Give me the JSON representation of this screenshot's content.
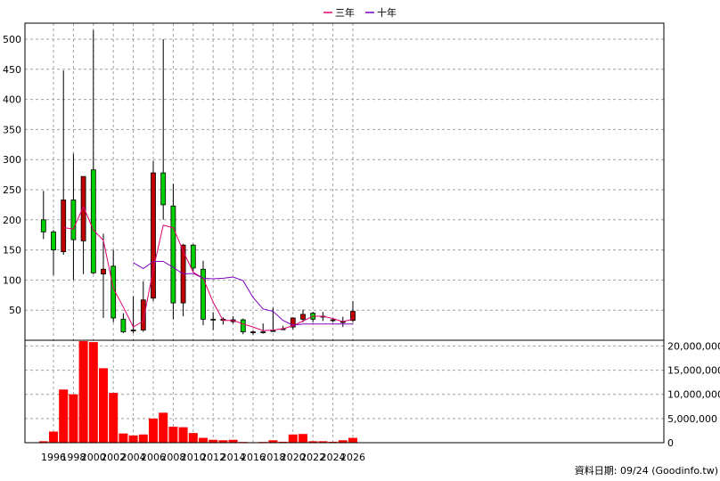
{
  "chart_data": {
    "type": "candlestick",
    "legend": {
      "placement": "top-center",
      "items": [
        {
          "label": "三年",
          "color": "#e0006e"
        },
        {
          "label": "十年",
          "color": "#8000c0"
        }
      ]
    },
    "x_ticks": [
      "1996",
      "1998",
      "2000",
      "2002",
      "2004",
      "2006",
      "2008",
      "2010",
      "2012",
      "2014",
      "2016",
      "2018",
      "2020",
      "2022",
      "2024",
      "2026"
    ],
    "price_axis": {
      "ticks": [
        50,
        100,
        150,
        200,
        250,
        300,
        350,
        400,
        450,
        500
      ],
      "ylim": [
        0,
        520
      ]
    },
    "volume_axis": {
      "ticks": [
        "20,000,000",
        "15,000,000",
        "10,000,000",
        "5,000,000",
        "0"
      ],
      "tick_values": [
        20000000,
        15000000,
        10000000,
        5000000,
        0
      ],
      "ylim": [
        0,
        21000000
      ]
    },
    "grid": true,
    "up_color": "#00d000",
    "down_color": "#c00000",
    "candles": [
      {
        "year": 1995,
        "open": 180,
        "close": 200,
        "high": 248,
        "low": 168
      },
      {
        "year": 1996,
        "open": 150,
        "close": 180,
        "high": 183,
        "low": 108
      },
      {
        "year": 1997,
        "open": 233,
        "close": 147,
        "high": 448,
        "low": 142
      },
      {
        "year": 1998,
        "open": 167,
        "close": 233,
        "high": 310,
        "low": 100
      },
      {
        "year": 1999,
        "open": 272,
        "close": 165,
        "high": 272,
        "low": 110
      },
      {
        "year": 2000,
        "open": 112,
        "close": 283,
        "high": 515,
        "low": 110
      },
      {
        "year": 2001,
        "open": 118,
        "close": 110,
        "high": 177,
        "low": 37
      },
      {
        "year": 2002,
        "open": 37,
        "close": 123,
        "high": 150,
        "low": 30
      },
      {
        "year": 2003,
        "open": 14,
        "close": 35,
        "high": 45,
        "low": 12
      },
      {
        "year": 2004,
        "open": 17,
        "close": 16,
        "high": 73,
        "low": 12
      },
      {
        "year": 2005,
        "open": 67,
        "close": 17,
        "high": 98,
        "low": 14
      },
      {
        "year": 2006,
        "open": 278,
        "close": 70,
        "high": 298,
        "low": 65
      },
      {
        "year": 2007,
        "open": 225,
        "close": 278,
        "high": 500,
        "low": 200
      },
      {
        "year": 2008,
        "open": 62,
        "close": 223,
        "high": 260,
        "low": 35
      },
      {
        "year": 2009,
        "open": 158,
        "close": 62,
        "high": 160,
        "low": 40
      },
      {
        "year": 2010,
        "open": 120,
        "close": 158,
        "high": 160,
        "low": 115
      },
      {
        "year": 2011,
        "open": 35,
        "close": 118,
        "high": 132,
        "low": 25
      },
      {
        "year": 2012,
        "open": 35,
        "close": 35,
        "high": 46,
        "low": 17
      },
      {
        "year": 2013,
        "open": 35,
        "close": 33,
        "high": 38,
        "low": 26
      },
      {
        "year": 2014,
        "open": 34,
        "close": 31,
        "high": 40,
        "low": 28
      },
      {
        "year": 2015,
        "open": 14,
        "close": 34,
        "high": 36,
        "low": 10
      },
      {
        "year": 2016,
        "open": 14,
        "close": 13,
        "high": 16,
        "low": 9
      },
      {
        "year": 2017,
        "open": 13,
        "close": 14,
        "high": 28,
        "low": 11
      },
      {
        "year": 2018,
        "open": 16,
        "close": 16,
        "high": 54,
        "low": 14
      },
      {
        "year": 2019,
        "open": 19,
        "close": 19,
        "high": 24,
        "low": 17
      },
      {
        "year": 2020,
        "open": 37,
        "close": 22,
        "high": 38,
        "low": 18
      },
      {
        "year": 2021,
        "open": 43,
        "close": 35,
        "high": 51,
        "low": 30
      },
      {
        "year": 2022,
        "open": 35,
        "close": 45,
        "high": 47,
        "low": 30
      },
      {
        "year": 2023,
        "open": 40,
        "close": 39,
        "high": 47,
        "low": 32
      },
      {
        "year": 2024,
        "open": 34,
        "close": 33,
        "high": 36,
        "low": 30
      },
      {
        "year": 2025,
        "open": 31,
        "close": 30,
        "high": 39,
        "low": 22
      },
      {
        "year": 2026,
        "open": 48,
        "close": 33,
        "high": 65,
        "low": 30
      }
    ],
    "series": [
      {
        "name": "三年",
        "color": "#e0006e",
        "points": [
          [
            1997,
            187
          ],
          [
            1998,
            185
          ],
          [
            1999,
            222
          ],
          [
            2000,
            183
          ],
          [
            2001,
            166
          ],
          [
            2002,
            86
          ],
          [
            2003,
            55
          ],
          [
            2004,
            22
          ],
          [
            2005,
            32
          ],
          [
            2006,
            118
          ],
          [
            2007,
            191
          ],
          [
            2008,
            187
          ],
          [
            2009,
            148
          ],
          [
            2010,
            113
          ],
          [
            2011,
            103
          ],
          [
            2012,
            63
          ],
          [
            2013,
            33
          ],
          [
            2014,
            33
          ],
          [
            2015,
            27
          ],
          [
            2016,
            22
          ],
          [
            2017,
            16
          ],
          [
            2018,
            17
          ],
          [
            2019,
            19
          ],
          [
            2020,
            24
          ],
          [
            2021,
            32
          ],
          [
            2022,
            40
          ],
          [
            2023,
            40
          ],
          [
            2024,
            36
          ],
          [
            2025,
            31
          ],
          [
            2026,
            35
          ]
        ]
      },
      {
        "name": "十年",
        "color": "#8000c0",
        "points": [
          [
            2004,
            129
          ],
          [
            2005,
            119
          ],
          [
            2006,
            131
          ],
          [
            2007,
            131
          ],
          [
            2008,
            121
          ],
          [
            2009,
            110
          ],
          [
            2010,
            111
          ],
          [
            2011,
            103
          ],
          [
            2012,
            102
          ],
          [
            2013,
            103
          ],
          [
            2014,
            105
          ],
          [
            2015,
            99
          ],
          [
            2016,
            71
          ],
          [
            2017,
            52
          ],
          [
            2018,
            48
          ],
          [
            2019,
            33
          ],
          [
            2020,
            25
          ],
          [
            2021,
            27
          ],
          [
            2022,
            27
          ],
          [
            2023,
            27
          ],
          [
            2024,
            27
          ],
          [
            2025,
            27
          ],
          [
            2026,
            27
          ]
        ]
      }
    ],
    "volume": {
      "color": "#ff0000",
      "values": [
        {
          "year": 1995,
          "value": 300000
        },
        {
          "year": 1996,
          "value": 2300000
        },
        {
          "year": 1997,
          "value": 11000000
        },
        {
          "year": 1998,
          "value": 10000000
        },
        {
          "year": 1999,
          "value": 21000000
        },
        {
          "year": 2000,
          "value": 20800000
        },
        {
          "year": 2001,
          "value": 15400000
        },
        {
          "year": 2002,
          "value": 10300000
        },
        {
          "year": 2003,
          "value": 1900000
        },
        {
          "year": 2004,
          "value": 1500000
        },
        {
          "year": 2005,
          "value": 1700000
        },
        {
          "year": 2006,
          "value": 5000000
        },
        {
          "year": 2007,
          "value": 6200000
        },
        {
          "year": 2008,
          "value": 3300000
        },
        {
          "year": 2009,
          "value": 3200000
        },
        {
          "year": 2010,
          "value": 2000000
        },
        {
          "year": 2011,
          "value": 1000000
        },
        {
          "year": 2012,
          "value": 600000
        },
        {
          "year": 2013,
          "value": 500000
        },
        {
          "year": 2014,
          "value": 600000
        },
        {
          "year": 2015,
          "value": 150000
        },
        {
          "year": 2016,
          "value": 100000
        },
        {
          "year": 2017,
          "value": 150000
        },
        {
          "year": 2018,
          "value": 500000
        },
        {
          "year": 2019,
          "value": 200000
        },
        {
          "year": 2020,
          "value": 1700000
        },
        {
          "year": 2021,
          "value": 1800000
        },
        {
          "year": 2022,
          "value": 300000
        },
        {
          "year": 2023,
          "value": 300000
        },
        {
          "year": 2024,
          "value": 200000
        },
        {
          "year": 2025,
          "value": 500000
        },
        {
          "year": 2026,
          "value": 1000000
        }
      ]
    },
    "footer": "資料日期: 09/24 (Goodinfo.tw)"
  }
}
